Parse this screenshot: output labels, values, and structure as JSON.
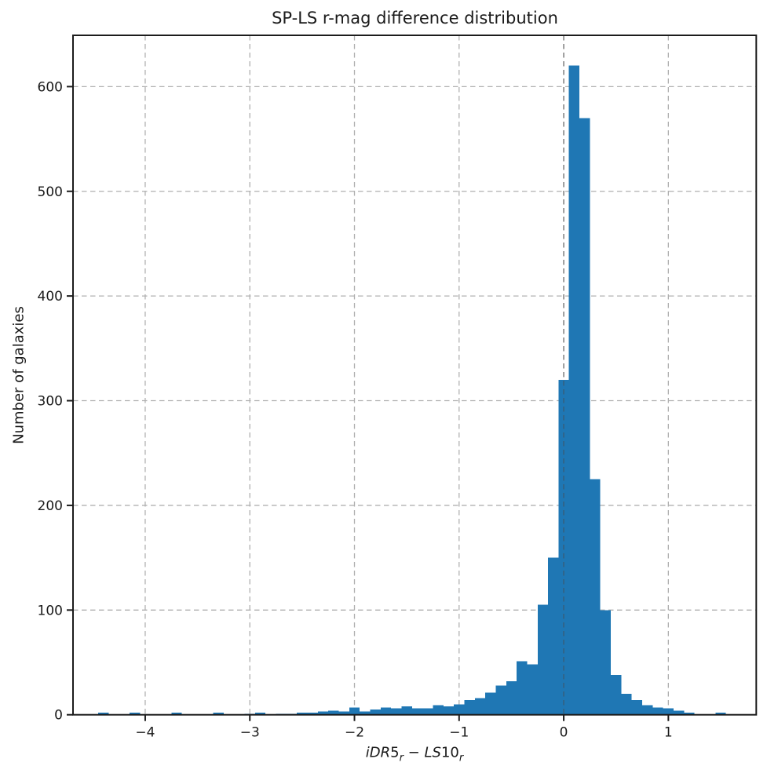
{
  "chart_data": {
    "type": "bar",
    "subtype": "histogram",
    "title": "SP-LS r-mag difference distribution",
    "ylabel": "Number of galaxies",
    "xlabel": "iDR5r − LS10r",
    "xlabel_parts": [
      {
        "text": "iDR",
        "italic": true
      },
      {
        "text": "5",
        "italic": false
      },
      {
        "text": "r",
        "italic": true,
        "sub": true
      },
      {
        "text": " − ",
        "italic": false
      },
      {
        "text": "LS",
        "italic": true
      },
      {
        "text": "10",
        "italic": false
      },
      {
        "text": "r",
        "italic": true,
        "sub": true
      }
    ],
    "bar_color": "#1f77b4",
    "grid_color": "#b0b0b0",
    "zero_line_color": "rgba(75,75,75,0.55)",
    "spine_color": "#1c1c1c",
    "text_color": "#1a1a1a",
    "grid": "dashed",
    "grid_axisbelow": true,
    "zero_line": true,
    "legend_position": "none",
    "xlim": [
      -4.69,
      1.84
    ],
    "ylim": [
      0,
      649
    ],
    "bin_width": 0.1,
    "bin_left": [
      -4.45,
      -4.35,
      -4.25,
      -4.15,
      -4.05,
      -3.95,
      -3.85,
      -3.75,
      -3.65,
      -3.55,
      -3.45,
      -3.35,
      -3.25,
      -3.15,
      -3.05,
      -2.95,
      -2.85,
      -2.75,
      -2.65,
      -2.55,
      -2.45,
      -2.35,
      -2.25,
      -2.15,
      -2.05,
      -1.95,
      -1.85,
      -1.75,
      -1.65,
      -1.55,
      -1.45,
      -1.35,
      -1.25,
      -1.15,
      -1.05,
      -0.95,
      -0.85,
      -0.75,
      -0.65,
      -0.55,
      -0.45,
      -0.35,
      -0.25,
      -0.15,
      -0.05,
      0.05,
      0.15,
      0.25,
      0.35,
      0.45,
      0.55,
      0.65,
      0.75,
      0.85,
      0.95,
      1.05,
      1.15,
      1.25,
      1.35,
      1.45
    ],
    "counts": [
      2,
      0,
      0,
      2,
      0,
      0,
      0,
      2,
      0,
      0,
      0,
      2,
      0,
      0,
      1,
      2,
      0,
      1,
      1,
      2,
      2,
      3,
      4,
      3,
      7,
      3,
      5,
      7,
      6,
      8,
      6,
      6,
      9,
      8,
      10,
      14,
      16,
      21,
      28,
      32,
      51,
      48,
      105,
      150,
      320,
      620,
      570,
      225,
      100,
      38,
      20,
      14,
      9,
      7,
      6,
      4,
      2,
      0,
      0,
      2
    ],
    "xticks": {
      "values": [
        -4,
        -3,
        -2,
        -1,
        0,
        1
      ],
      "labels": [
        "−4",
        "−3",
        "−2",
        "−1",
        "0",
        "1"
      ]
    },
    "yticks": {
      "values": [
        0,
        100,
        200,
        300,
        400,
        500,
        600
      ],
      "labels": [
        "0",
        "100",
        "200",
        "300",
        "400",
        "500",
        "600"
      ]
    }
  }
}
